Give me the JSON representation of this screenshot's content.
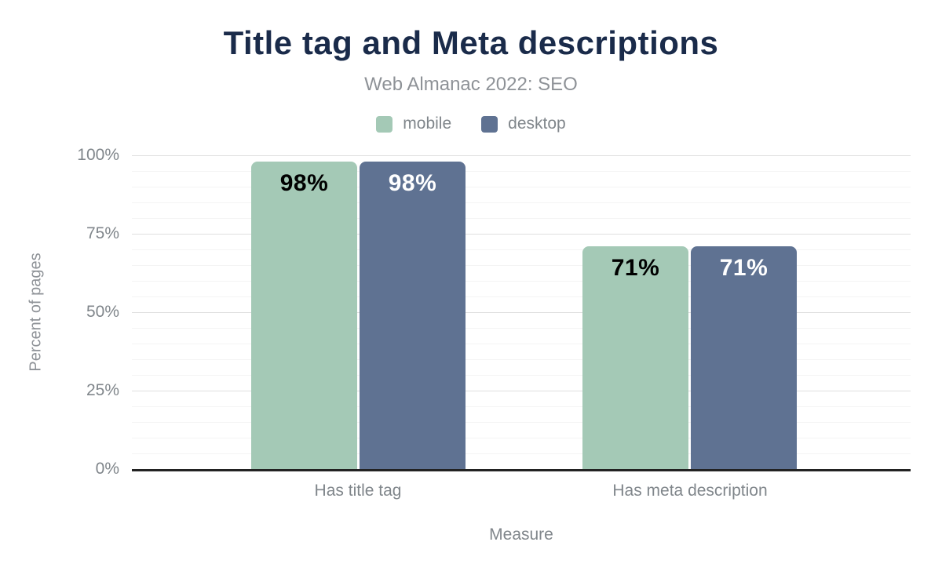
{
  "colors": {
    "title": "#1a2b4a",
    "muted_text": "#8e9297",
    "axis_text": "#80868b",
    "axis_line": "#222222",
    "gridline_major": "#dfdfdf",
    "gridline_minor": "#f4f4f4",
    "mobile": "#a4c9b6",
    "desktop": "#5f7292"
  },
  "chart_data": {
    "type": "bar",
    "title": "Title tag and Meta descriptions",
    "subtitle": "Web Almanac 2022: SEO",
    "categories": [
      "Has title tag",
      "Has meta description"
    ],
    "series": [
      {
        "name": "mobile",
        "color": "#a4c9b6",
        "label_color": "#000000",
        "values": [
          98,
          71
        ]
      },
      {
        "name": "desktop",
        "color": "#5f7292",
        "label_color": "#ffffff",
        "values": [
          98,
          71
        ]
      }
    ],
    "xlabel": "Measure",
    "ylabel": "Percent of pages",
    "ylim": [
      0,
      100
    ],
    "yticks": [
      "0%",
      "25%",
      "50%",
      "75%",
      "100%"
    ],
    "grid": "horizontal; major every 25%, minor every 5%",
    "legend_position": "top",
    "value_label_format": "{value}%"
  }
}
